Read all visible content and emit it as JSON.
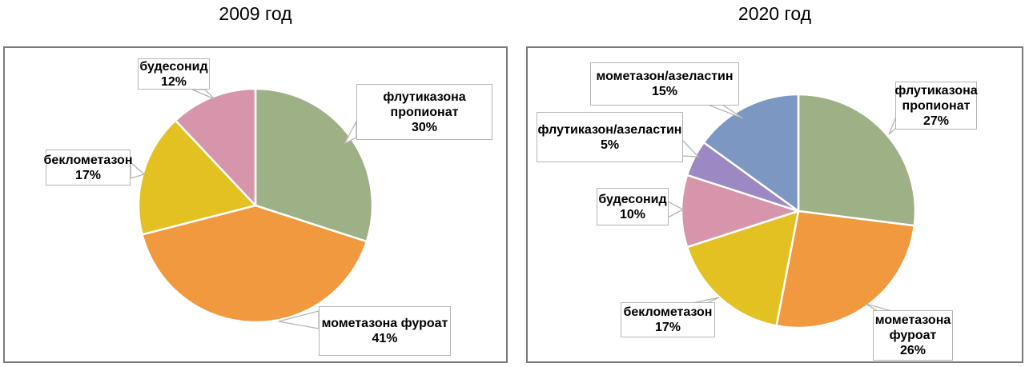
{
  "page": {
    "background": "#ffffff"
  },
  "chart_data": [
    {
      "type": "pie",
      "title": "2009 год",
      "categories": [
        "флутиказона пропионат",
        "мометазона фуроат",
        "беклометазон",
        "будесонид"
      ],
      "values": [
        30,
        41,
        17,
        12
      ],
      "pct_labels": [
        "30%",
        "41%",
        "17%",
        "12%"
      ],
      "colors": [
        "#9eb186",
        "#f0993e",
        "#e3c122",
        "#d795ac"
      ],
      "start_angle_deg": 0,
      "direction": "clockwise",
      "legend": "none",
      "label_style": "callout-boxes",
      "callouts": [
        {
          "lines": [
            "будесонид",
            "12%"
          ]
        },
        {
          "lines": [
            "флутиказона",
            "пропионат",
            "30%"
          ]
        },
        {
          "lines": [
            "беклометазон",
            "17%"
          ]
        },
        {
          "lines": [
            "мометазона фуроат",
            "41%"
          ]
        }
      ]
    },
    {
      "type": "pie",
      "title": "2020 год",
      "categories": [
        "флутиказона пропионат",
        "мометазона фуроат",
        "беклометазон",
        "будесонид",
        "флутиказон/азеластин",
        "мометазон/азеластин"
      ],
      "values": [
        27,
        26,
        17,
        10,
        5,
        15
      ],
      "pct_labels": [
        "27%",
        "26%",
        "17%",
        "10%",
        "5%",
        "15%"
      ],
      "colors": [
        "#9eb186",
        "#f0993e",
        "#e3c122",
        "#d795ac",
        "#9c88c2",
        "#7c97c2"
      ],
      "start_angle_deg": 0,
      "direction": "clockwise",
      "legend": "none",
      "label_style": "callout-boxes",
      "callouts": [
        {
          "lines": [
            "мометазон/азеластин",
            "15%"
          ]
        },
        {
          "lines": [
            "флутиказон/азеластин",
            "5%"
          ]
        },
        {
          "lines": [
            "будесонид",
            "10%"
          ]
        },
        {
          "lines": [
            "беклометазон",
            "17%"
          ]
        },
        {
          "lines": [
            "мометазона",
            "фуроат",
            "26%"
          ]
        },
        {
          "lines": [
            "флутиказона",
            "пропионат",
            "27%"
          ]
        }
      ]
    }
  ]
}
